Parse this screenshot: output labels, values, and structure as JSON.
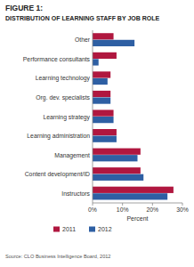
{
  "chart_data": {
    "type": "bar",
    "orientation": "horizontal",
    "title": "FIGURE 1:",
    "subtitle": "DISTRIBUTION OF LEARNING STAFF BY JOB ROLE",
    "categories": [
      "Other",
      "Performance consultants",
      "Learning technology",
      "Org. dev. specialists",
      "Learning strategy",
      "Learning administration",
      "Management",
      "Content development/ID",
      "Instructors"
    ],
    "series": [
      {
        "name": "2011",
        "color": "#b0173f",
        "values": [
          7,
          8,
          6,
          6,
          7,
          8,
          16,
          16,
          27
        ]
      },
      {
        "name": "2012",
        "color": "#2e5fa3",
        "values": [
          14,
          2,
          5,
          6,
          7,
          8,
          15,
          17,
          25
        ]
      }
    ],
    "xlabel": "Percent",
    "xlim": [
      0,
      30
    ],
    "xticks": [
      {
        "value": 0,
        "label": "0%"
      },
      {
        "value": 10,
        "label": "10%"
      },
      {
        "value": 20,
        "label": "20%"
      },
      {
        "value": 30,
        "label": "30%"
      }
    ],
    "grid": false,
    "legend": "bottom",
    "annotations": [
      "Source: CLO Business Intelligence Board, 2012"
    ]
  }
}
